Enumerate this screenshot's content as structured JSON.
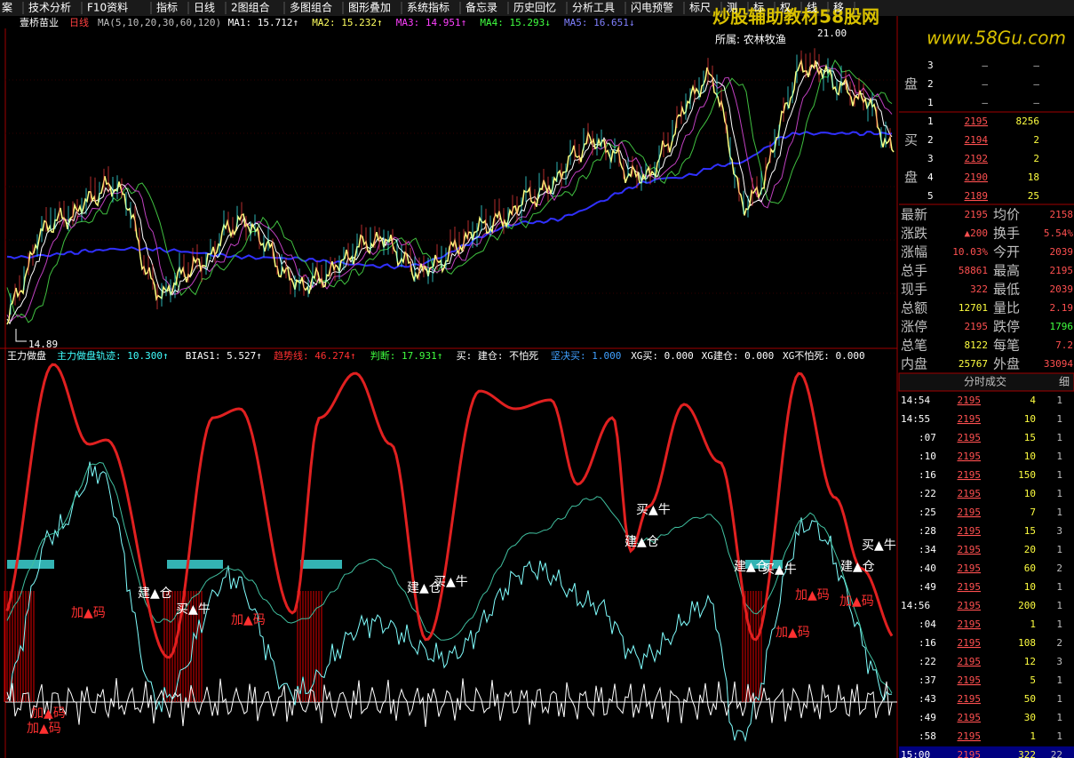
{
  "toolbar": [
    "案",
    "技术分析",
    "F10资料",
    "指标",
    "日线",
    "2图组合",
    "多图组合",
    "图形叠加",
    "系统指标",
    "备忘录",
    "历史回忆",
    "分析工具",
    "闪电预警",
    "标尺",
    "测",
    "标",
    "权",
    "线",
    "移"
  ],
  "watermark": {
    "title": "炒股辅助教材58股网",
    "url": "www.58Gu.com"
  },
  "ma_bar": {
    "stock": "壹桥苗业",
    "period": "日线",
    "ma": "MA(5,10,20,30,60,120)",
    "items": [
      "MA1: 15.712↑",
      "MA2: 15.232↑",
      "MA3: 14.951↑",
      "MA4: 15.293↓",
      "MA5: 16.651↓"
    ]
  },
  "main_chart": {
    "sector": "所属: 农林牧渔",
    "high_label": "21.00",
    "low_label": "14.89"
  },
  "indicator_bar": [
    "王力做盘",
    "主力做盘轨迹: 10.300↑",
    "BIAS1: 5.527↑",
    "趋势线: 46.274↑",
    "判断: 17.931↑",
    "买: 建仓: 不怕死",
    "坚决买: 1.000",
    "XG买: 0.000",
    "XG建仓: 0.000",
    "XG不怕死: 0.000"
  ],
  "signals": [
    {
      "text": "建▲仓",
      "color": "#ffffff"
    },
    {
      "text": "买▲牛",
      "color": "#ffffff"
    },
    {
      "text": "加▲码",
      "color": "#ff3030"
    },
    {
      "text": "加▲码",
      "color": "#ff3030"
    },
    {
      "text": "建▲仓",
      "color": "#ffffff"
    },
    {
      "text": "买▲牛",
      "color": "#ffffff"
    },
    {
      "text": "买▲牛",
      "color": "#ffffff"
    },
    {
      "text": "建▲仓",
      "color": "#ffffff"
    },
    {
      "text": "建▲仓",
      "color": "#ffffff"
    },
    {
      "text": "买▲牛",
      "color": "#ffffff"
    },
    {
      "text": "加▲码",
      "color": "#ff3030"
    },
    {
      "text": "加▲码",
      "color": "#ff3030"
    },
    {
      "text": "建▲仓",
      "color": "#ffffff"
    },
    {
      "text": "买▲牛",
      "color": "#ffffff"
    },
    {
      "text": "加▲码",
      "color": "#ff3030"
    },
    {
      "text": "加▲码",
      "color": "#ff3030"
    },
    {
      "text": "加▲码",
      "color": "#ff3030"
    }
  ],
  "order_book": {
    "sell_label": "盘",
    "sell": [
      [
        "3",
        "—",
        "—"
      ],
      [
        "2",
        "—",
        "—"
      ],
      [
        "1",
        "—",
        "—"
      ]
    ],
    "buy_label": [
      "买",
      "盘"
    ],
    "buy": [
      [
        "1",
        "2195",
        "8256"
      ],
      [
        "2",
        "2194",
        "2"
      ],
      [
        "3",
        "2192",
        "2"
      ],
      [
        "4",
        "2190",
        "18"
      ],
      [
        "5",
        "2189",
        "25"
      ]
    ]
  },
  "stats": [
    [
      "最新",
      "2195",
      "均价",
      "2158"
    ],
    [
      "涨跌",
      "▲200",
      "换手",
      "5.54%"
    ],
    [
      "涨幅",
      "10.03%",
      "今开",
      "2039"
    ],
    [
      "总手",
      "58861",
      "最高",
      "2195"
    ],
    [
      "现手",
      "322",
      "最低",
      "2039"
    ],
    [
      "总额",
      "12701",
      "量比",
      "2.19"
    ],
    [
      "涨停",
      "2195",
      "跌停",
      "1796"
    ],
    [
      "总笔",
      "8122",
      "每笔",
      "7.2"
    ],
    [
      "内盘",
      "25767",
      "外盘",
      "33094"
    ]
  ],
  "ticks": {
    "header": "分时成交",
    "detail": "细",
    "rows": [
      [
        "14:54",
        "2195",
        "4",
        "1"
      ],
      [
        "14:55",
        "2195",
        "10",
        "1"
      ],
      [
        ":07",
        "2195",
        "15",
        "1"
      ],
      [
        ":10",
        "2195",
        "10",
        "1"
      ],
      [
        ":16",
        "2195",
        "150",
        "1"
      ],
      [
        ":22",
        "2195",
        "10",
        "1"
      ],
      [
        ":25",
        "2195",
        "7",
        "1"
      ],
      [
        ":28",
        "2195",
        "15",
        "3"
      ],
      [
        ":34",
        "2195",
        "20",
        "1"
      ],
      [
        ":40",
        "2195",
        "60",
        "2"
      ],
      [
        ":49",
        "2195",
        "10",
        "1"
      ],
      [
        "14:56",
        "2195",
        "200",
        "1"
      ],
      [
        ":04",
        "2195",
        "1",
        "1"
      ],
      [
        ":16",
        "2195",
        "108",
        "2"
      ],
      [
        ":22",
        "2195",
        "12",
        "3"
      ],
      [
        ":37",
        "2195",
        "5",
        "1"
      ],
      [
        ":43",
        "2195",
        "50",
        "1"
      ],
      [
        ":49",
        "2195",
        "30",
        "1"
      ],
      [
        ":58",
        "2195",
        "1",
        "1"
      ],
      [
        "15:00",
        "2195",
        "322",
        "22"
      ]
    ]
  }
}
